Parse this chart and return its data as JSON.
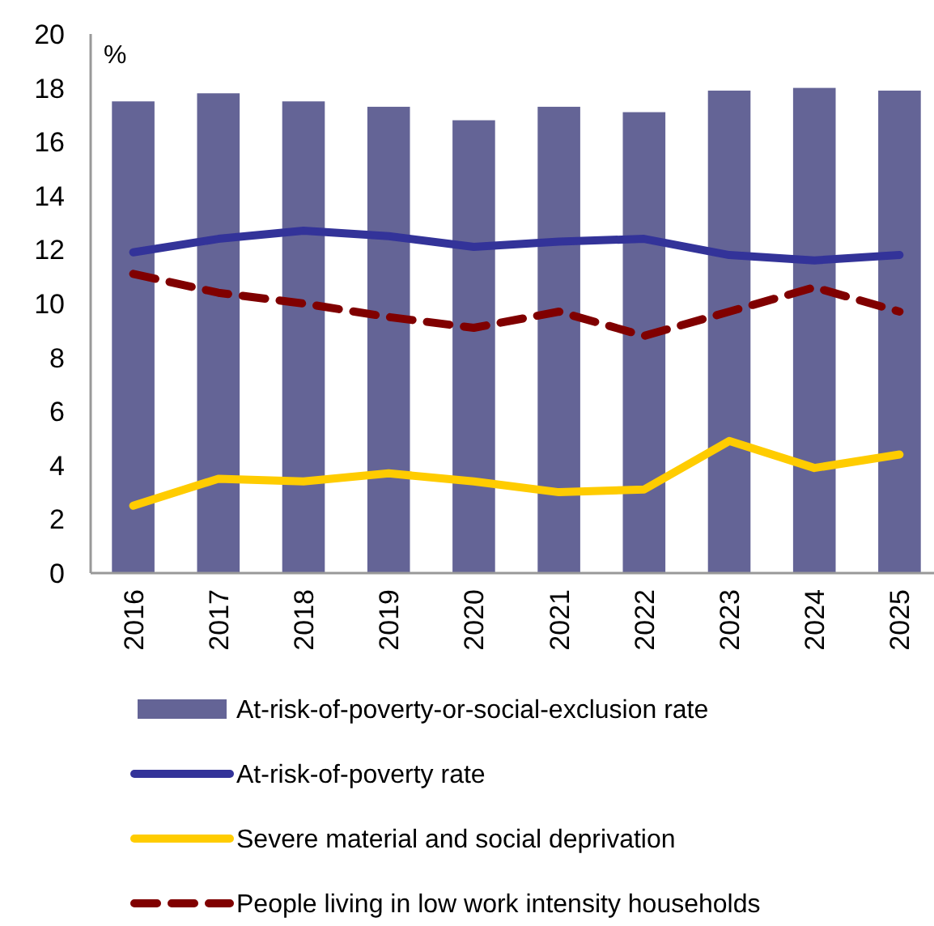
{
  "chart_data": {
    "type": "bar",
    "ylabel": "%",
    "categories": [
      "2016",
      "2017",
      "2018",
      "2019",
      "2020",
      "2021",
      "2022",
      "2023",
      "2024",
      "2025"
    ],
    "series": [
      {
        "name": "At-risk-of-poverty-or-social-exclusion rate",
        "color": "#646496",
        "values": [
          17.5,
          17.8,
          17.5,
          17.3,
          16.8,
          17.3,
          17.1,
          17.9,
          18.0,
          17.9
        ]
      },
      {
        "name": "At-risk-of-poverty rate",
        "type": "line",
        "color": "#333399",
        "line_style": "solid",
        "values": [
          11.9,
          12.4,
          12.7,
          12.5,
          12.1,
          12.3,
          12.4,
          11.8,
          11.6,
          11.8
        ]
      },
      {
        "name": "Severe material and social deprivation",
        "type": "line",
        "color": "#ffcc00",
        "line_style": "solid",
        "values": [
          2.5,
          3.5,
          3.4,
          3.7,
          3.4,
          3.0,
          3.1,
          4.9,
          3.9,
          4.4
        ]
      },
      {
        "name": "People living in low work intensity households",
        "type": "line",
        "color": "#800000",
        "line_style": "dashed",
        "values": [
          11.1,
          10.4,
          10.0,
          9.5,
          9.1,
          9.7,
          8.8,
          9.7,
          10.6,
          9.7
        ]
      }
    ],
    "ylim": [
      0,
      20
    ],
    "yticks": [
      0,
      2,
      4,
      6,
      8,
      10,
      12,
      14,
      16,
      18,
      20
    ],
    "grid": false,
    "legend": "bottom"
  }
}
